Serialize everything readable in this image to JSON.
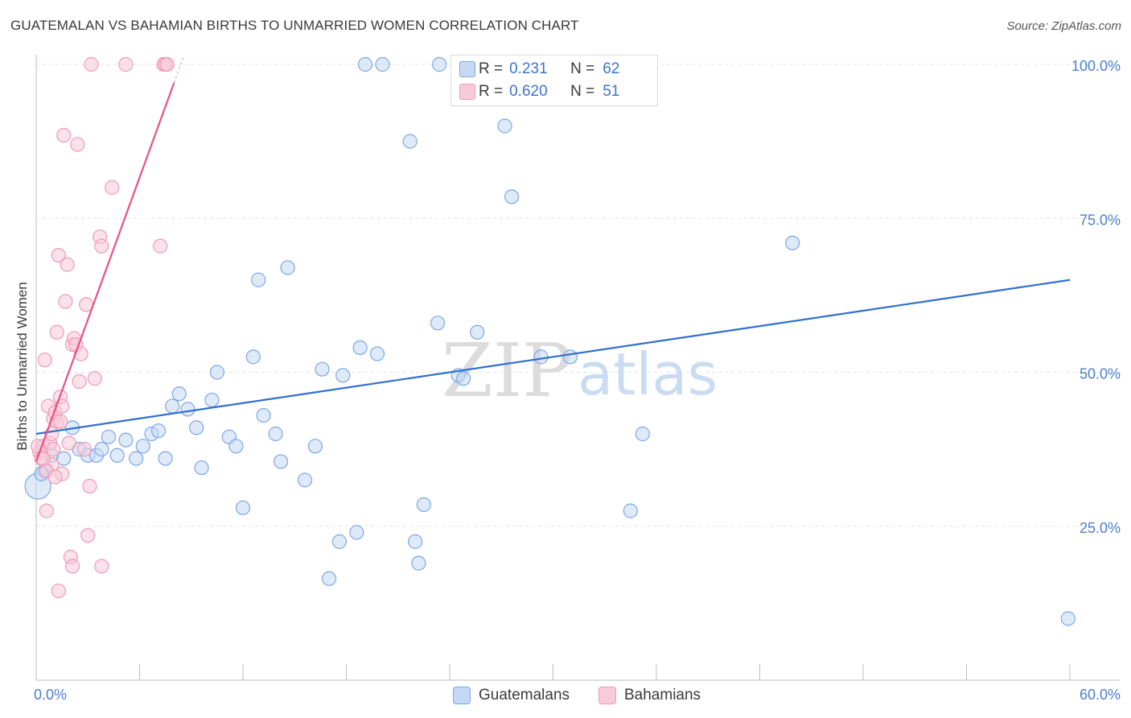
{
  "title": "GUATEMALAN VS BAHAMIAN BIRTHS TO UNMARRIED WOMEN CORRELATION CHART",
  "source": "Source: ZipAtlas.com",
  "watermark": {
    "zip": "ZIP",
    "atlas": "atlas"
  },
  "legend": {
    "rows": [
      {
        "r_label": "R =",
        "r_value": "0.231",
        "n_label": "N =",
        "n_value": "62"
      },
      {
        "r_label": "R =",
        "r_value": "0.620",
        "n_label": "N =",
        "n_value": "51"
      }
    ]
  },
  "chart_data": {
    "type": "scatter",
    "title": "GUATEMALAN VS BAHAMIAN BIRTHS TO UNMARRIED WOMEN CORRELATION CHART",
    "xlabel": "",
    "ylabel": "Births to Unmarried Women",
    "xlim": [
      0,
      60
    ],
    "ylim": [
      0,
      105
    ],
    "x_tick_labels": [
      {
        "value": 0,
        "label": "0.0%"
      },
      {
        "value": 60,
        "label": "60.0%"
      }
    ],
    "y_tick_labels": [
      {
        "value": 25,
        "label": "25.0%"
      },
      {
        "value": 50,
        "label": "50.0%"
      },
      {
        "value": 75,
        "label": "75.0%"
      },
      {
        "value": 100,
        "label": "100.0%"
      }
    ],
    "x_minor_ticks": [
      0,
      6,
      12,
      18,
      24,
      30,
      36,
      42,
      48,
      54,
      60
    ],
    "grid": true,
    "legend_position": "top-center",
    "series": [
      {
        "name": "Guatemalans",
        "color": "#7ba7e6",
        "fill": "#c5d9f4",
        "line_color": "#2f6fd0",
        "trend": {
          "x": [
            0,
            60
          ],
          "y": [
            40,
            65
          ]
        },
        "points": [
          [
            0.1,
            31.5
          ],
          [
            0.5,
            34.0
          ],
          [
            0.9,
            36.5
          ],
          [
            1.6,
            36.0
          ],
          [
            2.1,
            41.0
          ],
          [
            2.5,
            37.5
          ],
          [
            3.0,
            36.5
          ],
          [
            3.5,
            36.5
          ],
          [
            3.8,
            37.5
          ],
          [
            4.2,
            39.5
          ],
          [
            4.7,
            36.5
          ],
          [
            5.2,
            39.0
          ],
          [
            5.8,
            36.0
          ],
          [
            6.2,
            38.0
          ],
          [
            6.7,
            40.0
          ],
          [
            7.1,
            40.5
          ],
          [
            7.5,
            36.0
          ],
          [
            7.9,
            44.5
          ],
          [
            8.3,
            46.5
          ],
          [
            8.8,
            44.0
          ],
          [
            9.3,
            41.0
          ],
          [
            9.6,
            34.5
          ],
          [
            10.2,
            45.5
          ],
          [
            10.5,
            50.0
          ],
          [
            11.2,
            39.5
          ],
          [
            11.6,
            38.0
          ],
          [
            12.0,
            28.0
          ],
          [
            12.6,
            52.5
          ],
          [
            12.9,
            65.0
          ],
          [
            13.2,
            43.0
          ],
          [
            13.9,
            40.0
          ],
          [
            14.2,
            35.5
          ],
          [
            14.6,
            67.0
          ],
          [
            15.6,
            32.5
          ],
          [
            16.2,
            38.0
          ],
          [
            16.6,
            50.5
          ],
          [
            17.0,
            16.5
          ],
          [
            17.6,
            22.5
          ],
          [
            17.8,
            49.5
          ],
          [
            18.6,
            24.0
          ],
          [
            18.8,
            54.0
          ],
          [
            19.1,
            100.0
          ],
          [
            19.8,
            53.0
          ],
          [
            20.1,
            100.0
          ],
          [
            21.7,
            87.5
          ],
          [
            22.0,
            22.5
          ],
          [
            22.2,
            19.0
          ],
          [
            22.5,
            28.5
          ],
          [
            23.3,
            58.0
          ],
          [
            23.4,
            100.0
          ],
          [
            24.5,
            49.5
          ],
          [
            24.8,
            49.0
          ],
          [
            25.6,
            56.5
          ],
          [
            27.2,
            90.0
          ],
          [
            27.6,
            78.5
          ],
          [
            29.3,
            52.5
          ],
          [
            31.0,
            52.5
          ],
          [
            34.5,
            27.5
          ],
          [
            35.2,
            40.0
          ],
          [
            43.9,
            71.0
          ],
          [
            59.9,
            10.0
          ],
          [
            0.3,
            33.5
          ]
        ]
      },
      {
        "name": "Bahamians",
        "color": "#f09ab5",
        "fill": "#f8cbd9",
        "line_color": "#e8508a",
        "trend": {
          "x": [
            0,
            8.0
          ],
          "y": [
            35.5,
            97.0
          ]
        },
        "points": [
          [
            0.2,
            37.0
          ],
          [
            0.3,
            36.0
          ],
          [
            0.4,
            38.0
          ],
          [
            0.5,
            52.0
          ],
          [
            0.6,
            27.5
          ],
          [
            0.7,
            44.5
          ],
          [
            0.8,
            38.5
          ],
          [
            0.9,
            35.0
          ],
          [
            1.0,
            42.5
          ],
          [
            1.0,
            37.5
          ],
          [
            1.1,
            43.5
          ],
          [
            1.2,
            56.5
          ],
          [
            1.2,
            42.0
          ],
          [
            1.3,
            69.0
          ],
          [
            1.3,
            14.5
          ],
          [
            1.4,
            46.0
          ],
          [
            1.5,
            44.5
          ],
          [
            1.5,
            33.5
          ],
          [
            1.6,
            88.5
          ],
          [
            1.7,
            61.5
          ],
          [
            1.8,
            67.5
          ],
          [
            1.9,
            38.5
          ],
          [
            2.0,
            20.0
          ],
          [
            2.1,
            18.5
          ],
          [
            2.1,
            54.5
          ],
          [
            2.2,
            55.5
          ],
          [
            2.3,
            54.5
          ],
          [
            2.4,
            87.0
          ],
          [
            2.5,
            48.5
          ],
          [
            2.6,
            53.0
          ],
          [
            2.8,
            37.5
          ],
          [
            2.9,
            61.0
          ],
          [
            3.0,
            23.5
          ],
          [
            3.1,
            31.5
          ],
          [
            3.2,
            100.0
          ],
          [
            3.4,
            49.0
          ],
          [
            3.7,
            72.0
          ],
          [
            3.8,
            70.5
          ],
          [
            3.8,
            18.5
          ],
          [
            4.4,
            80.0
          ],
          [
            5.2,
            100.0
          ],
          [
            7.2,
            70.5
          ],
          [
            7.4,
            100.0
          ],
          [
            7.5,
            100.0
          ],
          [
            7.6,
            100.0
          ],
          [
            0.1,
            38.0
          ],
          [
            0.6,
            34.0
          ],
          [
            1.1,
            33.0
          ],
          [
            0.9,
            40.0
          ],
          [
            1.4,
            42.0
          ],
          [
            0.4,
            36.0
          ]
        ]
      }
    ]
  }
}
